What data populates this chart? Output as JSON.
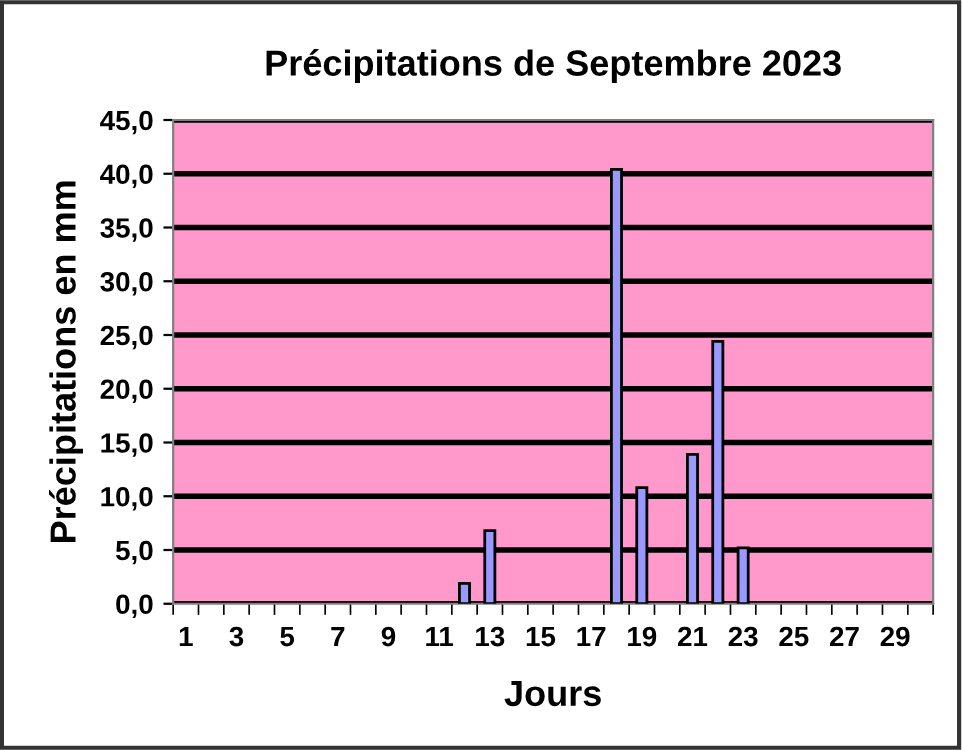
{
  "chart_data": {
    "type": "bar",
    "title": "Précipitations de Septembre 2023",
    "xlabel": "Jours",
    "ylabel": "Précipitations en mm",
    "categories": [
      "1",
      null,
      "3",
      null,
      "5",
      null,
      "7",
      null,
      "9",
      null,
      "11",
      null,
      "13",
      null,
      "15",
      null,
      "17",
      null,
      "19",
      null,
      "21",
      null,
      "23",
      null,
      "25",
      null,
      "27",
      null,
      "29",
      null
    ],
    "values": [
      null,
      null,
      null,
      null,
      null,
      null,
      null,
      null,
      null,
      null,
      null,
      1.9,
      6.8,
      null,
      null,
      null,
      null,
      40.4,
      10.8,
      null,
      13.9,
      24.4,
      5.2,
      null,
      null,
      null,
      null,
      null,
      null,
      null
    ],
    "color": "#9999ff",
    "ylim": [
      0,
      45
    ],
    "yticks": [
      {
        "value": 0,
        "label": "0,0"
      },
      {
        "value": 5,
        "label": "5,0"
      },
      {
        "value": 10,
        "label": "10,0"
      },
      {
        "value": 15,
        "label": "15,0"
      },
      {
        "value": 20,
        "label": "20,0"
      },
      {
        "value": 25,
        "label": "25,0"
      },
      {
        "value": 30,
        "label": "30,0"
      },
      {
        "value": 35,
        "label": "35,0"
      },
      {
        "value": 40,
        "label": "40,0"
      },
      {
        "value": 45,
        "label": "45,0"
      }
    ],
    "grid": "y"
  }
}
